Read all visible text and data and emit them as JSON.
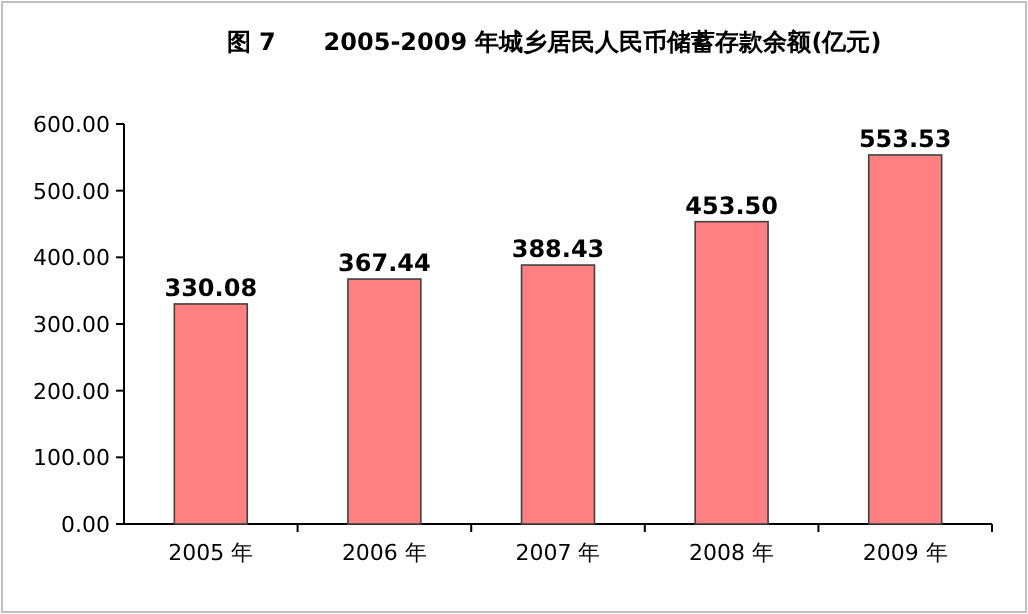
{
  "chart_data": {
    "type": "bar",
    "title": "图 7　　2005-2009 年城乡居民人民币储蓄存款余额(亿元)",
    "categories": [
      "2005 年",
      "2006 年",
      "2007 年",
      "2008 年",
      "2009 年"
    ],
    "values": [
      330.08,
      367.44,
      388.43,
      453.5,
      553.53
    ],
    "value_labels": [
      "330.08",
      "367.44",
      "388.43",
      "453.50",
      "553.53"
    ],
    "color": "#ff8080",
    "ylim": [
      0,
      600
    ],
    "yticks": [
      {
        "value": 0,
        "label": "0.00"
      },
      {
        "value": 100,
        "label": "100.00"
      },
      {
        "value": 200,
        "label": "200.00"
      },
      {
        "value": 300,
        "label": "300.00"
      },
      {
        "value": 400,
        "label": "400.00"
      },
      {
        "value": 500,
        "label": "500.00"
      },
      {
        "value": 600,
        "label": "600.00"
      }
    ]
  }
}
